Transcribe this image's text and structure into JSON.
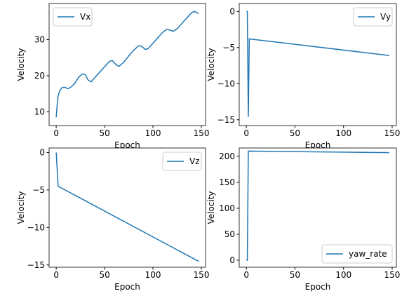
{
  "chart_data": [
    {
      "type": "line",
      "xlabel": "Epoch",
      "ylabel": "Velocity",
      "legend": "upper left",
      "xlim": [
        -7.35,
        154.35
      ],
      "ylim": [
        6.2,
        40.0
      ],
      "xticks": [
        0,
        50,
        100,
        150
      ],
      "yticks": [
        10,
        20,
        30
      ],
      "series": [
        {
          "name": "Vx",
          "color": "#1f77b4",
          "x": [
            0,
            1,
            2,
            4,
            6,
            9,
            12,
            15,
            19,
            23,
            27,
            30,
            33,
            36,
            40,
            45,
            50,
            55,
            58,
            62,
            65,
            70,
            75,
            80,
            85,
            88,
            92,
            95,
            100,
            105,
            110,
            114,
            117,
            121,
            125,
            130,
            135,
            140,
            143,
            147
          ],
          "values": [
            8.5,
            12,
            14.5,
            16,
            16.7,
            16.8,
            16.4,
            16.8,
            17.8,
            19.5,
            20.5,
            20.3,
            18.8,
            18.3,
            19.5,
            21,
            22.5,
            24,
            24.2,
            23,
            22.6,
            23.8,
            25.5,
            27,
            28.3,
            28.2,
            27.3,
            27.5,
            29,
            30.5,
            32,
            32.8,
            32.7,
            32.3,
            33,
            34.5,
            36,
            37.5,
            37.8,
            37.2
          ]
        }
      ]
    },
    {
      "type": "line",
      "xlabel": "Epoch",
      "ylabel": "Velocity",
      "legend": "upper right",
      "xlim": [
        -7.35,
        154.35
      ],
      "ylim": [
        -15.8,
        1.1
      ],
      "xticks": [
        0,
        50,
        100,
        150
      ],
      "yticks": [
        {
          "value": -15,
          "label": "−15"
        },
        {
          "value": -10,
          "label": "−10"
        },
        {
          "value": -5,
          "label": "−5"
        },
        0
      ],
      "series": [
        {
          "name": "Vy",
          "color": "#1f77b4",
          "x": [
            0,
            1,
            2,
            3,
            147
          ],
          "values": [
            0,
            0,
            -14.6,
            -3.8,
            -6.1
          ]
        }
      ]
    },
    {
      "type": "line",
      "xlabel": "Epoch",
      "ylabel": "Velocity",
      "legend": "upper right",
      "xlim": [
        -7.35,
        154.35
      ],
      "ylim": [
        -15.3,
        0.6
      ],
      "xticks": [
        0,
        50,
        100,
        150
      ],
      "yticks": [
        {
          "value": -15,
          "label": "−15"
        },
        {
          "value": -10,
          "label": "−10"
        },
        {
          "value": -5,
          "label": "−5"
        },
        0
      ],
      "series": [
        {
          "name": "Vz",
          "color": "#1f77b4",
          "x": [
            0,
            2,
            147
          ],
          "values": [
            0,
            -4.5,
            -14.5
          ]
        }
      ]
    },
    {
      "type": "line",
      "xlabel": "Epoch",
      "ylabel": "Velocity",
      "legend": "lower right",
      "xlim": [
        -7.35,
        154.35
      ],
      "ylim": [
        -13.5,
        216
      ],
      "xticks": [
        0,
        50,
        100,
        150
      ],
      "yticks": [
        0,
        50,
        100,
        150,
        200
      ],
      "series": [
        {
          "name": "yaw_rate",
          "color": "#1f77b4",
          "x": [
            0,
            1,
            2,
            147
          ],
          "values": [
            0,
            0,
            210,
            207
          ]
        }
      ]
    }
  ]
}
